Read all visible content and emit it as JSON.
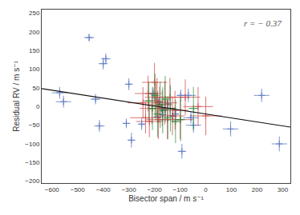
{
  "chart_data": {
    "type": "scatter",
    "xlabel": "Bisector span / m s⁻¹",
    "ylabel": "Residual RV / m s⁻¹",
    "annotation": "r = − 0.37",
    "xlim": [
      -640,
      330
    ],
    "ylim": [
      -205,
      260
    ],
    "xticks": [
      -600,
      -500,
      -400,
      -300,
      -200,
      -100,
      0,
      100,
      200,
      300
    ],
    "yticks": [
      -200,
      -150,
      -100,
      -50,
      0,
      50,
      100,
      150,
      200,
      250
    ],
    "grid": false,
    "series": [
      {
        "type": "scatter",
        "marker": "plus",
        "color": "#4466bb",
        "x": [
          -570,
          -555,
          -455,
          -430,
          -415,
          -400,
          -390,
          -310,
          -300,
          -290,
          -250,
          -205,
          -188,
          -183,
          -173,
          -168,
          -158,
          -148,
          -128,
          -118,
          -98,
          -93,
          -68,
          -58,
          -48,
          97,
          218,
          287
        ],
        "values": [
          37,
          13,
          185,
          20,
          -52,
          115,
          128,
          -45,
          60,
          -90,
          -47,
          35,
          -28,
          12,
          -5,
          -22,
          -8,
          7,
          -25,
          -20,
          30,
          -120,
          30,
          -30,
          -50,
          -60,
          30,
          -100
        ],
        "x_errors": [
          30,
          30,
          20,
          20,
          20,
          18,
          18,
          15,
          15,
          15,
          15,
          16,
          16,
          14,
          14,
          14,
          14,
          14,
          14,
          14,
          16,
          16,
          30,
          30,
          30,
          30,
          30,
          30
        ],
        "y_errors": [
          16,
          16,
          10,
          14,
          16,
          16,
          14,
          13,
          16,
          20,
          16,
          16,
          16,
          13,
          13,
          18,
          13,
          13,
          18,
          16,
          16,
          20,
          18,
          16,
          20,
          20,
          18,
          20
        ]
      },
      {
        "type": "scatter",
        "marker": "plus",
        "color": "#cc3333",
        "x": [
          -245,
          -235,
          -225,
          -220,
          -210,
          -200,
          -195,
          -190,
          -185,
          -180,
          -170,
          -160,
          -150,
          -140,
          -130,
          -120,
          -100,
          -80,
          -30,
          0
        ],
        "values": [
          10,
          -30,
          35,
          -40,
          -5,
          65,
          15,
          25,
          -35,
          5,
          -5,
          10,
          -35,
          25,
          -25,
          -10,
          -35,
          25,
          0,
          -25
        ],
        "x_errors": [
          60,
          60,
          52,
          52,
          48,
          48,
          48,
          48,
          48,
          48,
          48,
          48,
          48,
          48,
          48,
          52,
          52,
          58,
          58,
          62
        ],
        "y_errors": [
          42,
          42,
          48,
          42,
          42,
          52,
          48,
          52,
          52,
          48,
          48,
          58,
          52,
          52,
          52,
          52,
          52,
          48,
          52,
          52
        ]
      },
      {
        "type": "scatter",
        "marker": "plus",
        "color": "#228833",
        "x": [
          -222,
          -208,
          -198,
          -188,
          -178,
          -168,
          -158,
          -148,
          -138,
          -118,
          -98,
          -48
        ],
        "values": [
          15,
          -5,
          30,
          -20,
          5,
          -10,
          20,
          -30,
          -5,
          -40,
          -35,
          -5
        ],
        "x_errors": [
          18,
          18,
          16,
          16,
          16,
          16,
          16,
          16,
          16,
          18,
          18,
          20
        ],
        "y_errors": [
          52,
          58,
          58,
          62,
          62,
          62,
          62,
          58,
          62,
          58,
          58,
          58
        ]
      },
      {
        "type": "line",
        "line_style": "solid",
        "color": "#111111",
        "x": [
          -640,
          330
        ],
        "values": [
          48,
          -55
        ]
      }
    ]
  }
}
